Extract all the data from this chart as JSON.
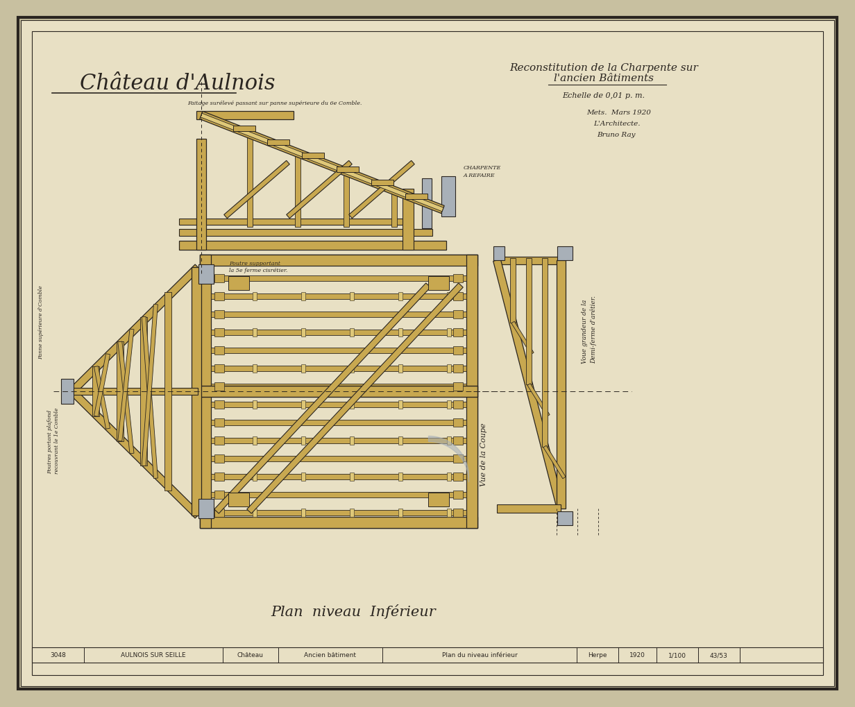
{
  "bg_color": "#c8c0a0",
  "paper_color": "#e8e0c4",
  "border_color": "#2a2520",
  "wood_color": "#c8a850",
  "wood_dark": "#8b7035",
  "wood_light": "#dfc878",
  "gray_fill": "#a8b0b8",
  "line_color": "#2a2520",
  "title_left": "Château d'Aulnois",
  "title_right_line1": "Reconstitution de la Charpente sur",
  "title_right_line2": "l'ancien Bâtiments",
  "scale_text": "Echelle de 0,01 p. m.",
  "date_text": "Mets.  Mars 1920",
  "arch_text": "L'Architecte.",
  "name_text": "Bruno Ray",
  "bottom_label1": "Plan  niveau  Inférieur",
  "charpente_label": "CHARPENTE\nA REFAIRE",
  "poutre_label": "Poutre supportant\nla 5e ferme cisrétier.",
  "vue_coupe_label": "Vue de la Coupe",
  "vue_grandeur_label": "Voue grandeur de la\nDemi-ferme d'arêtier.",
  "faitage_label": "Faitage surélevé passant sur panne supérieure du 6e Comble.",
  "plan_label1": "Panne supérieure d'Comble",
  "plan_label2": "Poutres portant plafond\nrecouvrant le 1e Comble",
  "bottom_cells": [
    [
      46,
      75,
      "3048"
    ],
    [
      121,
      200,
      "AULNOIS SUR SEILLE"
    ],
    [
      321,
      80,
      "Château"
    ],
    [
      401,
      150,
      "Ancien bâtiment"
    ],
    [
      551,
      280,
      "Plan du niveau inférieur"
    ],
    [
      831,
      60,
      "Herpe"
    ],
    [
      891,
      55,
      "1920"
    ],
    [
      946,
      60,
      "1/100"
    ],
    [
      1006,
      60,
      "43/53"
    ]
  ]
}
